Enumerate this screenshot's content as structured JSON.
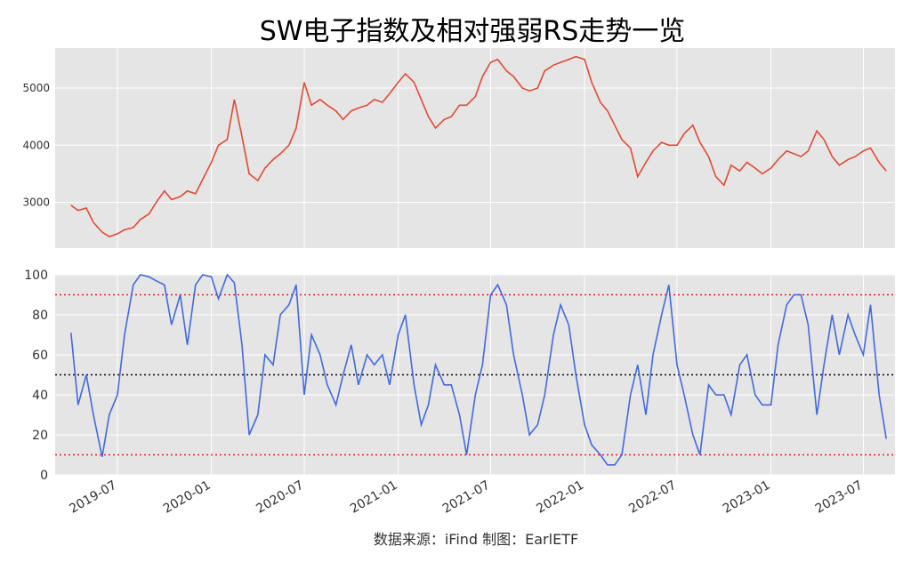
{
  "title": "SW电子指数及相对强弱RS走势一览",
  "source": "数据来源：iFind 制图：EarlETF",
  "colors": {
    "index_line": "#e24a33",
    "rs_line": "#4169e1",
    "panel_bg": "#e5e5e5",
    "grid": "#ffffff",
    "ref_red": "#dd2222",
    "ref_black": "#000000"
  },
  "chart_data": [
    {
      "type": "line",
      "title": "",
      "xlabel": "",
      "ylabel": "",
      "x_range": [
        "2019-03-01",
        "2023-09-01"
      ],
      "ylim": [
        2200,
        5700
      ],
      "yticks": [
        3000,
        4000,
        5000
      ],
      "grid": true,
      "series": [
        {
          "x": [
            "2019-04-01",
            "2019-04-15",
            "2019-05-01",
            "2019-05-15",
            "2019-06-01",
            "2019-06-15",
            "2019-07-01",
            "2019-07-15",
            "2019-08-01",
            "2019-08-15",
            "2019-09-01",
            "2019-09-15",
            "2019-10-01",
            "2019-10-15",
            "2019-11-01",
            "2019-11-15",
            "2019-12-01",
            "2019-12-15",
            "2020-01-01",
            "2020-01-15",
            "2020-02-01",
            "2020-02-15",
            "2020-03-01",
            "2020-03-15",
            "2020-04-01",
            "2020-04-15",
            "2020-05-01",
            "2020-05-15",
            "2020-06-01",
            "2020-06-15",
            "2020-07-01",
            "2020-07-15",
            "2020-08-01",
            "2020-08-15",
            "2020-09-01",
            "2020-09-15",
            "2020-10-01",
            "2020-10-15",
            "2020-11-01",
            "2020-11-15",
            "2020-12-01",
            "2020-12-15",
            "2021-01-01",
            "2021-01-15",
            "2021-02-01",
            "2021-02-15",
            "2021-03-01",
            "2021-03-15",
            "2021-04-01",
            "2021-04-15",
            "2021-05-01",
            "2021-05-15",
            "2021-06-01",
            "2021-06-15",
            "2021-07-01",
            "2021-07-15",
            "2021-08-01",
            "2021-08-15",
            "2021-09-01",
            "2021-09-15",
            "2021-10-01",
            "2021-10-15",
            "2021-11-01",
            "2021-11-15",
            "2021-12-01",
            "2021-12-15",
            "2022-01-01",
            "2022-01-15",
            "2022-02-01",
            "2022-02-15",
            "2022-03-01",
            "2022-03-15",
            "2022-04-01",
            "2022-04-15",
            "2022-05-01",
            "2022-05-15",
            "2022-06-01",
            "2022-06-15",
            "2022-07-01",
            "2022-07-15",
            "2022-08-01",
            "2022-08-15",
            "2022-09-01",
            "2022-09-15",
            "2022-10-01",
            "2022-10-15",
            "2022-11-01",
            "2022-11-15",
            "2022-12-01",
            "2022-12-15",
            "2023-01-01",
            "2023-01-15",
            "2023-02-01",
            "2023-02-15",
            "2023-03-01",
            "2023-03-15",
            "2023-04-01",
            "2023-04-15",
            "2023-05-01",
            "2023-05-15",
            "2023-06-01",
            "2023-06-15",
            "2023-07-01",
            "2023-07-15",
            "2023-08-01",
            "2023-08-15"
          ],
          "values": [
            2950,
            2860,
            2900,
            2650,
            2480,
            2400,
            2450,
            2520,
            2560,
            2700,
            2800,
            3000,
            3200,
            3050,
            3100,
            3200,
            3150,
            3400,
            3700,
            4000,
            4100,
            4800,
            4150,
            3500,
            3380,
            3600,
            3750,
            3850,
            4000,
            4300,
            5100,
            4700,
            4800,
            4700,
            4600,
            4450,
            4600,
            4650,
            4700,
            4800,
            4750,
            4900,
            5100,
            5250,
            5100,
            4800,
            4500,
            4300,
            4450,
            4500,
            4700,
            4700,
            4850,
            5200,
            5450,
            5500,
            5300,
            5200,
            5000,
            4950,
            5000,
            5300,
            5400,
            5450,
            5500,
            5550,
            5500,
            5100,
            4750,
            4600,
            4350,
            4100,
            3950,
            3450,
            3700,
            3900,
            4050,
            4000,
            4000,
            4200,
            4350,
            4050,
            3800,
            3450,
            3300,
            3650,
            3550,
            3700,
            3600,
            3500,
            3600,
            3750,
            3900,
            3850,
            3800,
            3900,
            4250,
            4100,
            3800,
            3650,
            3750,
            3800,
            3900,
            3950,
            3700,
            3550
          ]
        }
      ]
    },
    {
      "type": "line",
      "title": "",
      "xlabel": "",
      "ylabel": "",
      "x_range": [
        "2019-03-01",
        "2023-09-01"
      ],
      "ylim": [
        0,
        100
      ],
      "yticks": [
        0,
        20,
        40,
        60,
        80,
        100
      ],
      "reference_lines": [
        10,
        50,
        90
      ],
      "grid": true,
      "xtick_labels": [
        "2019-07",
        "2020-01",
        "2020-07",
        "2021-01",
        "2021-07",
        "2022-01",
        "2022-07",
        "2023-01",
        "2023-07"
      ],
      "series": [
        {
          "x": [
            "2019-04-01",
            "2019-04-15",
            "2019-05-01",
            "2019-05-15",
            "2019-06-01",
            "2019-06-15",
            "2019-07-01",
            "2019-07-15",
            "2019-08-01",
            "2019-08-15",
            "2019-09-01",
            "2019-09-15",
            "2019-10-01",
            "2019-10-15",
            "2019-11-01",
            "2019-11-15",
            "2019-12-01",
            "2019-12-15",
            "2020-01-01",
            "2020-01-15",
            "2020-02-01",
            "2020-02-15",
            "2020-03-01",
            "2020-03-15",
            "2020-04-01",
            "2020-04-15",
            "2020-05-01",
            "2020-05-15",
            "2020-06-01",
            "2020-06-15",
            "2020-07-01",
            "2020-07-15",
            "2020-08-01",
            "2020-08-15",
            "2020-09-01",
            "2020-09-15",
            "2020-10-01",
            "2020-10-15",
            "2020-11-01",
            "2020-11-15",
            "2020-12-01",
            "2020-12-15",
            "2021-01-01",
            "2021-01-15",
            "2021-02-01",
            "2021-02-15",
            "2021-03-01",
            "2021-03-15",
            "2021-04-01",
            "2021-04-15",
            "2021-05-01",
            "2021-05-15",
            "2021-06-01",
            "2021-06-15",
            "2021-07-01",
            "2021-07-15",
            "2021-08-01",
            "2021-08-15",
            "2021-09-01",
            "2021-09-15",
            "2021-10-01",
            "2021-10-15",
            "2021-11-01",
            "2021-11-15",
            "2021-12-01",
            "2021-12-15",
            "2022-01-01",
            "2022-01-15",
            "2022-02-01",
            "2022-02-15",
            "2022-03-01",
            "2022-03-15",
            "2022-04-01",
            "2022-04-15",
            "2022-05-01",
            "2022-05-15",
            "2022-06-01",
            "2022-06-15",
            "2022-07-01",
            "2022-07-15",
            "2022-08-01",
            "2022-08-15",
            "2022-09-01",
            "2022-09-15",
            "2022-10-01",
            "2022-10-15",
            "2022-11-01",
            "2022-11-15",
            "2022-12-01",
            "2022-12-15",
            "2023-01-01",
            "2023-01-15",
            "2023-02-01",
            "2023-02-15",
            "2023-03-01",
            "2023-03-15",
            "2023-04-01",
            "2023-04-15",
            "2023-05-01",
            "2023-05-15",
            "2023-06-01",
            "2023-06-15",
            "2023-07-01",
            "2023-07-15",
            "2023-08-01",
            "2023-08-15"
          ],
          "values": [
            71,
            35,
            50,
            30,
            9,
            30,
            40,
            70,
            95,
            100,
            99,
            97,
            95,
            75,
            90,
            65,
            95,
            100,
            99,
            88,
            100,
            96,
            65,
            20,
            30,
            60,
            55,
            80,
            85,
            95,
            40,
            70,
            60,
            45,
            35,
            50,
            65,
            45,
            60,
            55,
            60,
            45,
            70,
            80,
            45,
            25,
            35,
            55,
            45,
            45,
            30,
            10,
            40,
            55,
            90,
            95,
            85,
            60,
            40,
            20,
            25,
            40,
            70,
            85,
            75,
            50,
            25,
            15,
            10,
            5,
            5,
            10,
            40,
            55,
            30,
            60,
            80,
            95,
            55,
            40,
            20,
            10,
            45,
            40,
            40,
            30,
            55,
            60,
            40,
            35,
            35,
            65,
            85,
            90,
            90,
            75,
            30,
            55,
            80,
            60,
            80,
            70,
            60,
            85,
            40,
            18
          ]
        }
      ]
    }
  ]
}
